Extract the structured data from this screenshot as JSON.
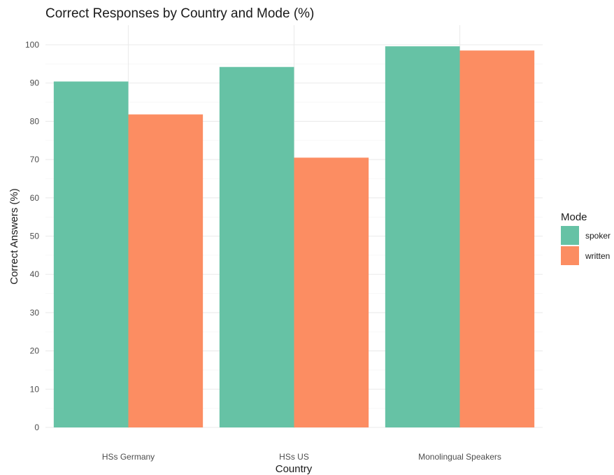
{
  "chart_data": {
    "type": "bar",
    "title": "Correct Responses by Country and Mode (%)",
    "xlabel": "Country",
    "ylabel": "Correct Answers (%)",
    "categories": [
      "HSs Germany",
      "HSs US",
      "Monolingual Speakers"
    ],
    "series": [
      {
        "name": "spoker",
        "values": [
          90.4,
          94.2,
          99.6
        ],
        "color": "#66c2a5"
      },
      {
        "name": "written",
        "values": [
          81.8,
          70.5,
          98.5
        ],
        "color": "#fc8d62"
      }
    ],
    "ylim": [
      0,
      100
    ],
    "yticks": [
      0,
      10,
      20,
      30,
      40,
      50,
      60,
      70,
      80,
      90,
      100
    ],
    "grid": true,
    "legend": {
      "title": "Mode",
      "position": "right"
    }
  }
}
